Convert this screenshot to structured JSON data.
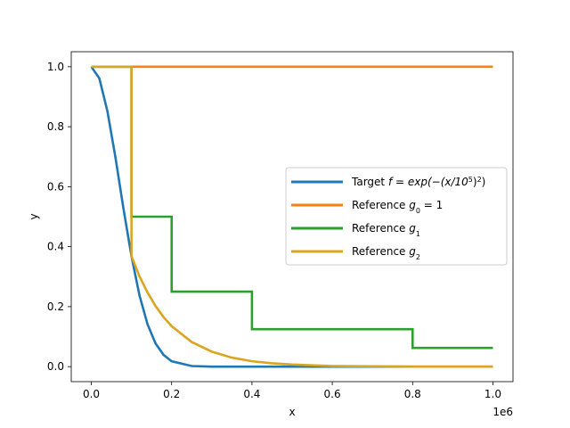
{
  "chart_data": {
    "type": "line",
    "xlabel": "x",
    "ylabel": "y",
    "x_offset_label": "1e6",
    "xlim": [
      -50000,
      1050000
    ],
    "ylim": [
      -0.05,
      1.05
    ],
    "x_ticks": [
      0,
      200000,
      400000,
      600000,
      800000,
      1000000
    ],
    "x_tick_labels": [
      "0.0",
      "0.2",
      "0.4",
      "0.6",
      "0.8",
      "1.0"
    ],
    "y_ticks": [
      0,
      0.2,
      0.4,
      0.6,
      0.8,
      1.0
    ],
    "y_tick_labels": [
      "0.0",
      "0.2",
      "0.4",
      "0.6",
      "0.8",
      "1.0"
    ],
    "grid": false,
    "legend_position": "center-right",
    "series": [
      {
        "name": "Target f = exp(−(x/10⁵)²)",
        "color": "#1f77b4",
        "x": [
          0,
          20000,
          40000,
          60000,
          80000,
          100000,
          120000,
          140000,
          160000,
          180000,
          200000,
          250000,
          300000,
          400000,
          500000,
          600000,
          700000,
          800000,
          900000,
          1000000
        ],
        "y": [
          1.0,
          0.961,
          0.852,
          0.698,
          0.527,
          0.368,
          0.237,
          0.141,
          0.077,
          0.039,
          0.018,
          0.002,
          0.0,
          0.0,
          0.0,
          0.0,
          0.0,
          0.0,
          0.0,
          0.0
        ]
      },
      {
        "name": "Reference g₀ = 1",
        "color": "#ff7f0e",
        "x": [
          0,
          1000000
        ],
        "y": [
          1.0,
          1.0
        ]
      },
      {
        "name": "Reference g₁",
        "color": "#2ca02c",
        "x": [
          0,
          100000,
          100000,
          200000,
          200000,
          400000,
          400000,
          800000,
          800000,
          1000000
        ],
        "y": [
          1.0,
          1.0,
          0.5,
          0.5,
          0.25,
          0.25,
          0.125,
          0.125,
          0.0625,
          0.0625
        ]
      },
      {
        "name": "Reference g₂",
        "color": "#daa520",
        "x": [
          0,
          100000,
          100000,
          120000,
          140000,
          160000,
          180000,
          200000,
          250000,
          300000,
          350000,
          400000,
          450000,
          500000,
          600000,
          700000,
          800000,
          900000,
          1000000
        ],
        "y": [
          1.0,
          1.0,
          0.368,
          0.301,
          0.247,
          0.202,
          0.165,
          0.135,
          0.082,
          0.05,
          0.03,
          0.018,
          0.011,
          0.007,
          0.002,
          0.001,
          0.0,
          0.0,
          0.0
        ]
      }
    ]
  },
  "legend": {
    "entries": [
      {
        "prefix": "Target ",
        "math": "f = exp(−(x/10",
        "sup": "5",
        "suffix": ")",
        "sup2": "2",
        "end": ")"
      },
      {
        "prefix": "Reference ",
        "math": "g",
        "sub": "0",
        "suffix": " = 1"
      },
      {
        "prefix": "Reference ",
        "math": "g",
        "sub": "1",
        "suffix": ""
      },
      {
        "prefix": "Reference ",
        "math": "g",
        "sub": "2",
        "suffix": ""
      }
    ]
  }
}
